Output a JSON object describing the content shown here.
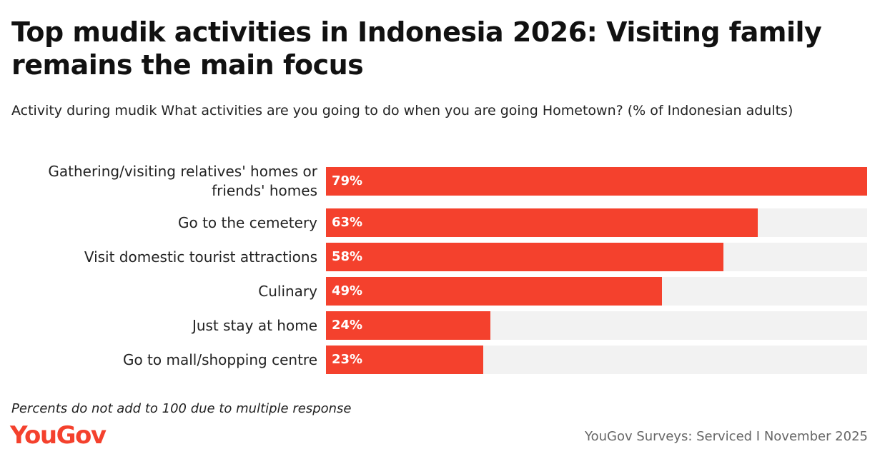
{
  "chart_data": {
    "type": "bar",
    "orientation": "horizontal",
    "title": "Top mudik activities in Indonesia 2026: Visiting family remains the main focus",
    "subtitle": "Activity during mudik What activities are you going to do when you are going Hometown? (% of Indonesian adults)",
    "categories": [
      "Gathering/visiting relatives' homes or friends' homes",
      "Go to the cemetery",
      "Visit domestic tourist attractions",
      "Culinary",
      "Just stay at home",
      "Go to mall/shopping centre"
    ],
    "values": [
      79,
      63,
      58,
      49,
      24,
      23
    ],
    "value_labels": [
      "79%",
      "63%",
      "58%",
      "49%",
      "24%",
      "23%"
    ],
    "color": "#f4412d",
    "track_color": "#f2f2f2",
    "note": "Percents do not add to 100 due to multiple response",
    "logo": "YouGov",
    "source": "YouGov Surveys: Serviced I November 2025"
  }
}
